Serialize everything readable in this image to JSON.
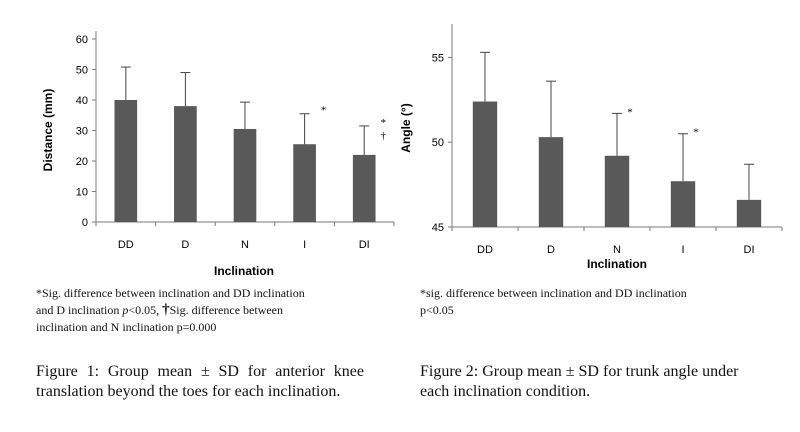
{
  "chart_data": [
    {
      "type": "bar",
      "categories": [
        "DD",
        "D",
        "N",
        "I",
        "DI"
      ],
      "values": [
        40,
        38,
        30.5,
        25.5,
        22
      ],
      "errors": [
        10.8,
        11,
        8.8,
        10,
        9.5
      ],
      "ylabel": "Distance (mm)",
      "xlabel": "Inclination",
      "ylim": [
        0,
        60
      ],
      "yticks": [
        "0",
        "10",
        "20",
        "30",
        "40",
        "50",
        "60"
      ],
      "ytick_values": [
        0,
        10,
        20,
        30,
        40,
        50,
        60
      ],
      "markers": [
        {
          "category": "I",
          "symbol": "*"
        },
        {
          "category": "DI",
          "symbol": "*"
        },
        {
          "category": "DI",
          "symbol": "†"
        }
      ],
      "bar_color": "#595959",
      "footnote": {
        "line1": "*Sig. difference between inclination and DD inclination",
        "line2a": "and D inclination ",
        "line2p": "p",
        "line2b": "<0.05, ",
        "line2dag": "†",
        "line2c": "Sig. difference between",
        "line3": "inclination and N inclination p=0.000"
      },
      "caption": "Figure 1: Group mean ± SD for anterior knee translation beyond the toes for each inclination."
    },
    {
      "type": "bar",
      "categories": [
        "DD",
        "D",
        "N",
        "I",
        "DI"
      ],
      "values": [
        52.4,
        50.3,
        49.2,
        47.7,
        46.6
      ],
      "errors": [
        2.9,
        3.3,
        2.5,
        2.8,
        2.1
      ],
      "ylabel": "Angle (°)",
      "xlabel": "Inclination",
      "ylim": [
        45,
        56.5
      ],
      "yticks": [
        "45",
        "50",
        "55"
      ],
      "ytick_values": [
        45,
        50,
        55
      ],
      "markers": [
        {
          "category": "N",
          "symbol": "*"
        },
        {
          "category": "I",
          "symbol": "*"
        }
      ],
      "bar_color": "#595959",
      "footnote": {
        "line1": "*sig. difference between inclination and DD inclination",
        "line2": "p<0.05"
      },
      "caption": "Figure 2: Group mean ± SD for trunk angle under each inclination condition."
    }
  ]
}
